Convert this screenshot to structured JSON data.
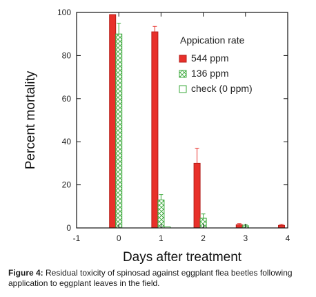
{
  "chart_data": {
    "type": "bar",
    "xlabel": "Days after treatment",
    "ylabel": "Percent mortality",
    "x_ticks": [
      "-1",
      "0",
      "1",
      "2",
      "3",
      "4"
    ],
    "y_ticks": [
      "0",
      "20",
      "40",
      "60",
      "80",
      "100"
    ],
    "xlim": [
      -1,
      4
    ],
    "ylim": [
      0,
      100
    ],
    "categories": [
      "0",
      "1",
      "2",
      "3",
      "4"
    ],
    "legend_title": "Appication rate",
    "legend_position": "top-right",
    "grid": false,
    "series": [
      {
        "name": "544 ppm",
        "color": "#e8302a",
        "pattern": "solid",
        "values": [
          99,
          91,
          30,
          1.5,
          1.2
        ],
        "errors": [
          0,
          2.5,
          7,
          0.5,
          0.5
        ]
      },
      {
        "name": "136 ppm",
        "color": "#3aa83a",
        "pattern": "crosshatch",
        "values": [
          90,
          13,
          4.5,
          1,
          0
        ],
        "errors": [
          5,
          2.5,
          2,
          0.5,
          0
        ]
      },
      {
        "name": "check (0 ppm)",
        "color": "#3aa83a",
        "pattern": "open",
        "values": [
          0,
          0.5,
          0,
          0,
          0
        ],
        "errors": [
          0,
          0,
          0,
          0,
          0
        ]
      }
    ]
  },
  "caption": {
    "label": "Figure 4:",
    "text": " Residual toxicity of spinosad against eggplant flea beetles following application to eggplant leaves in the field."
  }
}
